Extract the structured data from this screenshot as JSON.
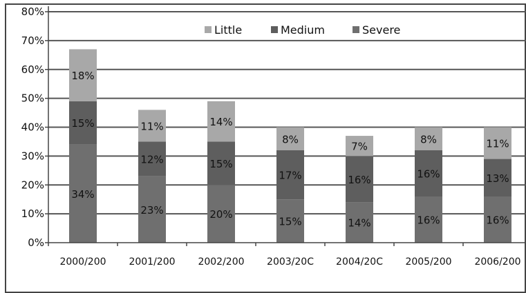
{
  "chart_data": {
    "type": "bar",
    "stacked": true,
    "categories": [
      "2000/200",
      "2001/200",
      "2002/200",
      "2003/20C",
      "2004/20C",
      "2005/200",
      "2006/200"
    ],
    "series": [
      {
        "name": "Severe",
        "values": [
          34,
          23,
          20,
          15,
          14,
          16,
          16
        ],
        "labels": [
          "34%",
          "23%",
          "20%",
          "15%",
          "14%",
          "16%",
          "16%"
        ],
        "color": "#6f6f6f"
      },
      {
        "name": "Medium",
        "values": [
          15,
          12,
          15,
          17,
          16,
          16,
          13
        ],
        "labels": [
          "15%",
          "12%",
          "15%",
          "17%",
          "16%",
          "16%",
          "13%"
        ],
        "color": "#5e5e5e"
      },
      {
        "name": "Little",
        "values": [
          18,
          11,
          14,
          8,
          7,
          8,
          11
        ],
        "labels": [
          "18%",
          "11%",
          "14%",
          "8%",
          "7%",
          "8%",
          "11%"
        ],
        "color": "#a8a8a8"
      }
    ],
    "legend": {
      "order": [
        "Little",
        "Medium",
        "Severe"
      ],
      "placement": "top-right"
    },
    "ylim": [
      0,
      80
    ],
    "yticks": [
      0,
      10,
      20,
      30,
      40,
      50,
      60,
      70,
      80
    ],
    "ytick_labels": [
      "0%",
      "10%",
      "20%",
      "30%",
      "40%",
      "50%",
      "60%",
      "70%",
      "80%"
    ],
    "grid": true,
    "title": "",
    "xlabel": "",
    "ylabel": ""
  }
}
